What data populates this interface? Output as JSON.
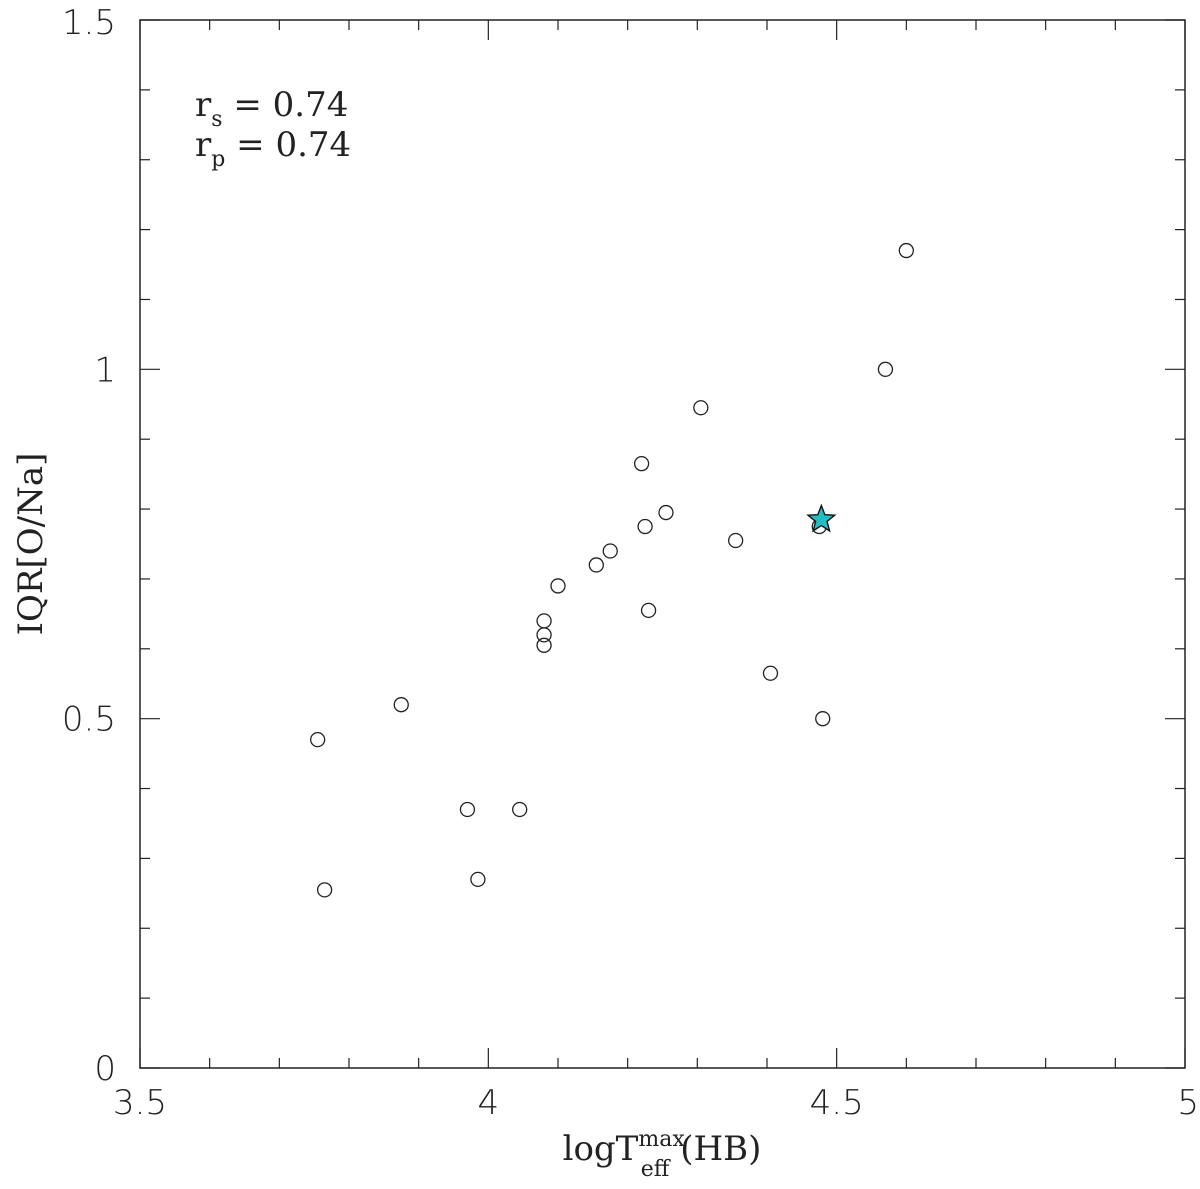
{
  "chart_data": {
    "type": "scatter",
    "xlabel": {
      "main": "logT",
      "sup": "max",
      "sub": "eff",
      "suffix": " (HB)"
    },
    "ylabel": "IQR[O/Na]",
    "xlim": [
      3.5,
      5.0
    ],
    "ylim": [
      0,
      1.5
    ],
    "x_ticks": [
      3.5,
      4,
      4.5,
      5
    ],
    "x_tick_labels": [
      "3.5",
      "4",
      "4.5",
      "5"
    ],
    "y_ticks": [
      0,
      0.5,
      1,
      1.5
    ],
    "y_tick_labels": [
      "0",
      "0.5",
      "1",
      "1.5"
    ],
    "x_minor_step": 0.1,
    "y_minor_step": 0.1,
    "grid": false,
    "annotations": [
      {
        "sym": "r",
        "sub": "s",
        "text": " = 0.74"
      },
      {
        "sym": "r",
        "sub": "p",
        "text": " = 0.74"
      }
    ],
    "series": [
      {
        "marker": "open-circle",
        "points": [
          {
            "x": 3.755,
            "y": 0.47
          },
          {
            "x": 3.765,
            "y": 0.255
          },
          {
            "x": 3.875,
            "y": 0.52
          },
          {
            "x": 3.97,
            "y": 0.37
          },
          {
            "x": 3.985,
            "y": 0.27
          },
          {
            "x": 4.045,
            "y": 0.37
          },
          {
            "x": 4.08,
            "y": 0.64
          },
          {
            "x": 4.08,
            "y": 0.62
          },
          {
            "x": 4.08,
            "y": 0.605
          },
          {
            "x": 4.1,
            "y": 0.69
          },
          {
            "x": 4.155,
            "y": 0.72
          },
          {
            "x": 4.175,
            "y": 0.74
          },
          {
            "x": 4.22,
            "y": 0.865
          },
          {
            "x": 4.225,
            "y": 0.775
          },
          {
            "x": 4.23,
            "y": 0.655
          },
          {
            "x": 4.255,
            "y": 0.795
          },
          {
            "x": 4.305,
            "y": 0.945
          },
          {
            "x": 4.355,
            "y": 0.755
          },
          {
            "x": 4.405,
            "y": 0.565
          },
          {
            "x": 4.475,
            "y": 0.775
          },
          {
            "x": 4.48,
            "y": 0.5
          },
          {
            "x": 4.57,
            "y": 1.0
          },
          {
            "x": 4.6,
            "y": 1.17
          }
        ]
      },
      {
        "marker": "star",
        "color": "#1fbfc4",
        "points": [
          {
            "x": 4.478,
            "y": 0.785
          }
        ]
      }
    ]
  }
}
